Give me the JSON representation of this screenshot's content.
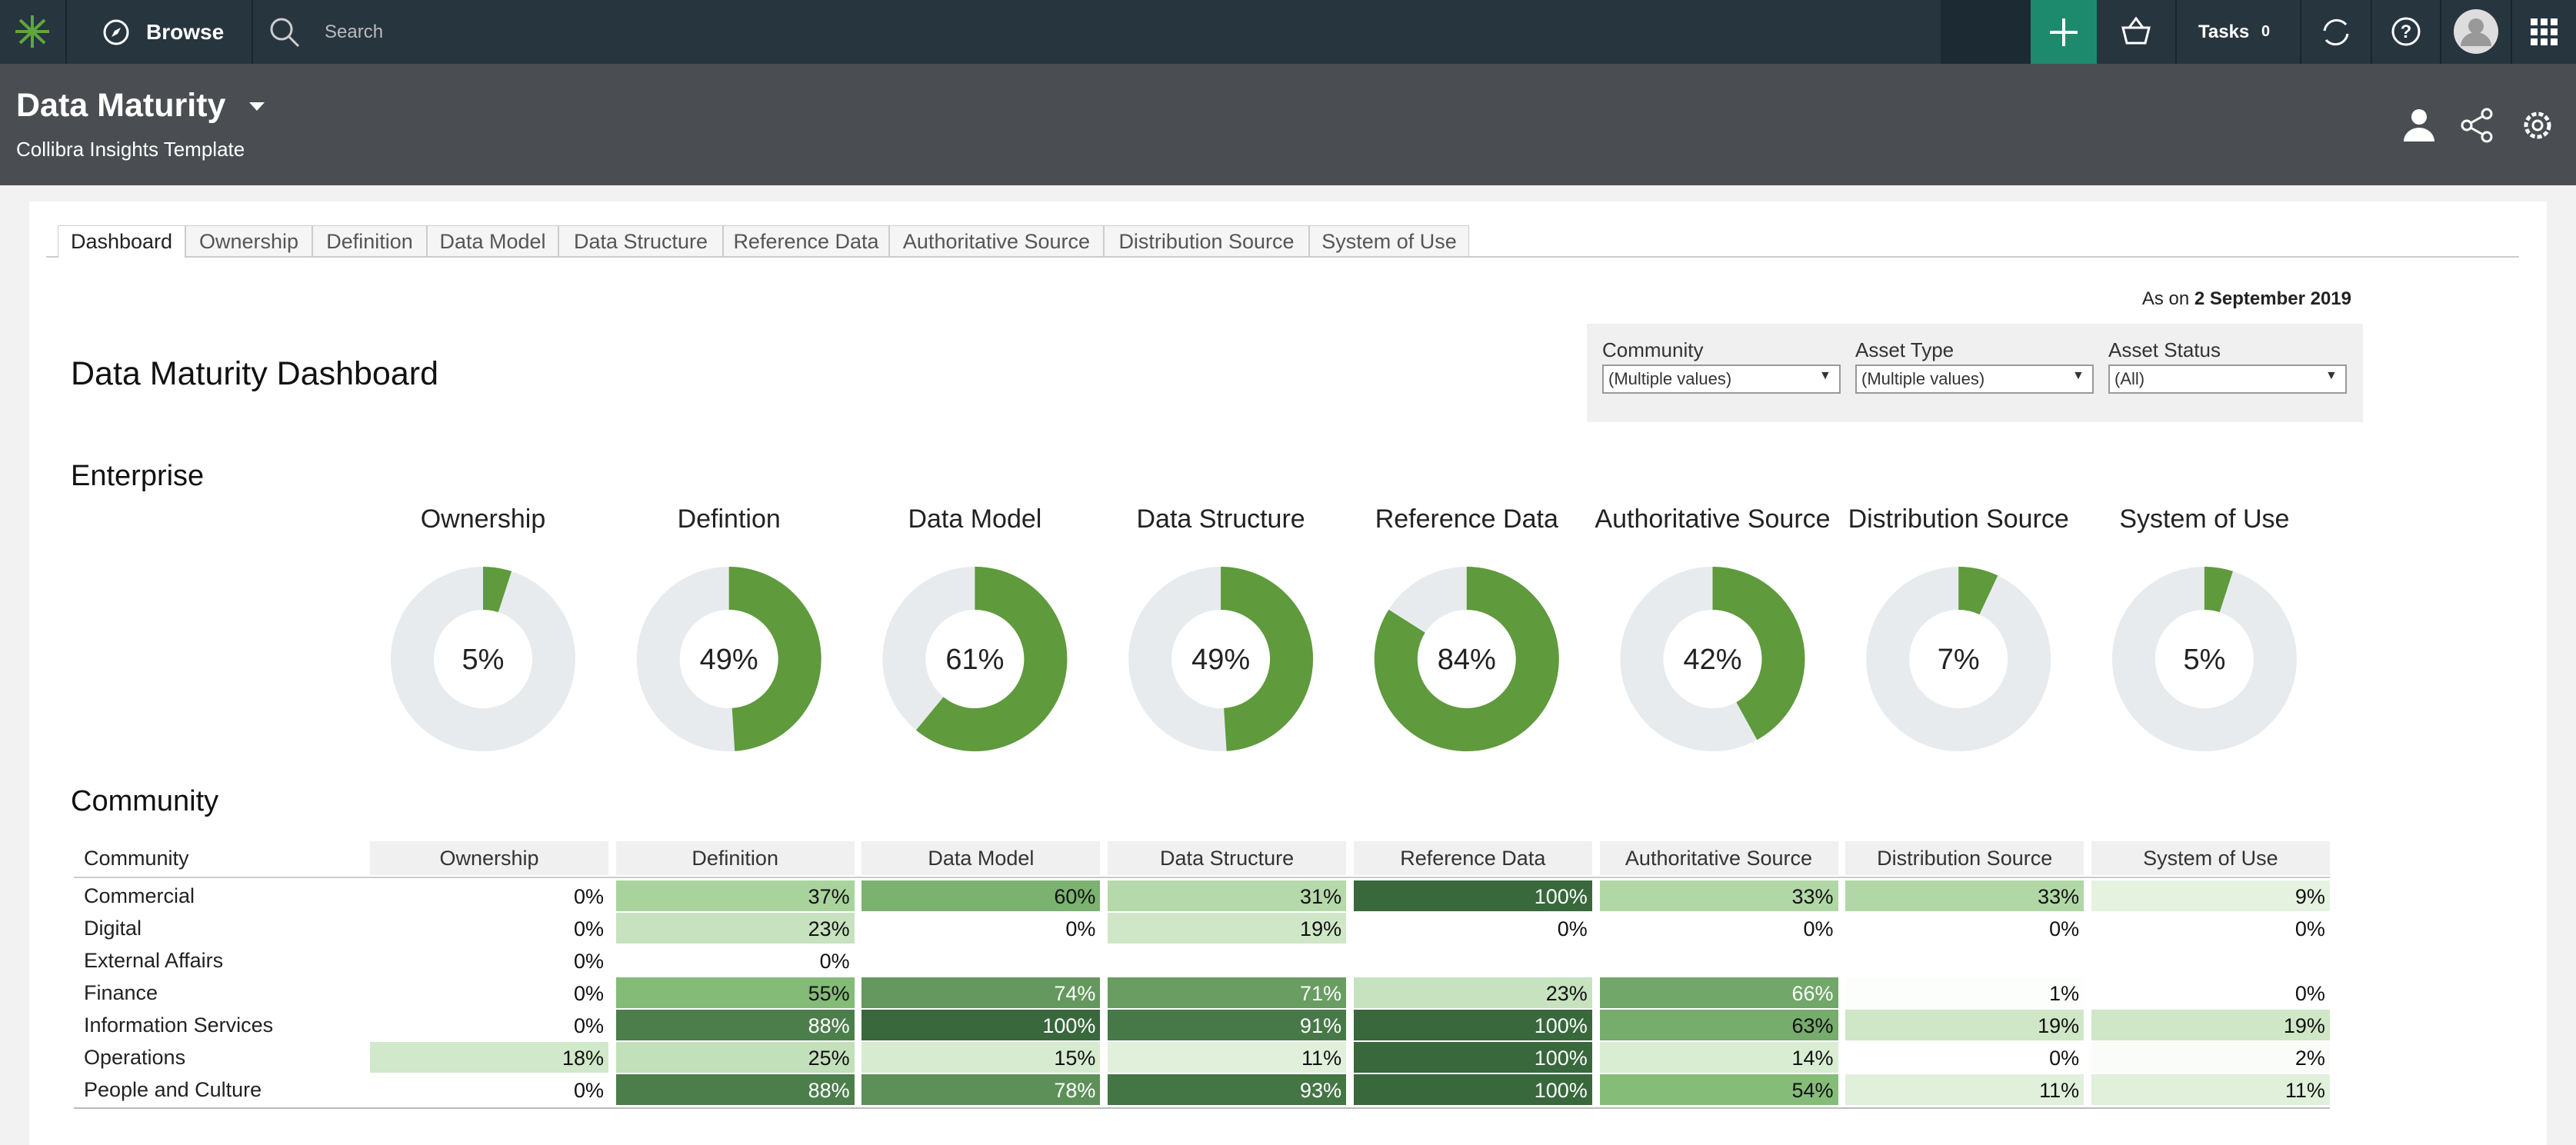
{
  "nav": {
    "browse": "Browse",
    "search": "Search",
    "tasks": "Tasks",
    "task_count": "0"
  },
  "header": {
    "title": "Data Maturity",
    "subtitle": "Collibra Insights Template"
  },
  "tabs": [
    "Dashboard",
    "Ownership",
    "Definition",
    "Data Model",
    "Data Structure",
    "Reference Data",
    "Authoritative Source",
    "Distribution Source",
    "System of Use"
  ],
  "as_on": {
    "prefix": "As on",
    "date": "2 September 2019"
  },
  "filters": [
    {
      "label": "Community",
      "value": "(Multiple values)"
    },
    {
      "label": "Asset Type",
      "value": "(Multiple values)"
    },
    {
      "label": "Asset Status",
      "value": "(All)"
    }
  ],
  "dashboard_title": "Data Maturity Dashboard",
  "enterprise": {
    "title": "Enterprise",
    "donuts": [
      {
        "label": "Ownership",
        "value": 5,
        "value_label": "5%"
      },
      {
        "label": "Defintion",
        "value": 49,
        "value_label": "49%"
      },
      {
        "label": "Data Model",
        "value": 61,
        "value_label": "61%"
      },
      {
        "label": "Data Structure",
        "value": 49,
        "value_label": "49%"
      },
      {
        "label": "Reference Data",
        "value": 84,
        "value_label": "84%"
      },
      {
        "label": "Authoritative Source",
        "value": 42,
        "value_label": "42%"
      },
      {
        "label": "Distribution Source",
        "value": 7,
        "value_label": "7%"
      },
      {
        "label": "System of Use",
        "value": 5,
        "value_label": "5%"
      }
    ]
  },
  "community": {
    "title": "Community",
    "corner": "Community",
    "columns": [
      "Ownership",
      "Definition",
      "Data Model",
      "Data Structure",
      "Reference Data",
      "Authoritative Source",
      "Distribution Source",
      "System of Use"
    ],
    "rows": [
      {
        "name": "Commercial",
        "cells": [
          {
            "value": 0,
            "label": "0%"
          },
          {
            "value": 37,
            "label": "37%"
          },
          {
            "value": 60,
            "label": "60%"
          },
          {
            "value": 31,
            "label": "31%"
          },
          {
            "value": 100,
            "label": "100%"
          },
          {
            "value": 33,
            "label": "33%"
          },
          {
            "value": 33,
            "label": "33%"
          },
          {
            "value": 9,
            "label": "9%"
          }
        ]
      },
      {
        "name": "Digital",
        "cells": [
          {
            "value": 0,
            "label": "0%"
          },
          {
            "value": 23,
            "label": "23%"
          },
          {
            "value": 0,
            "label": "0%"
          },
          {
            "value": 19,
            "label": "19%"
          },
          {
            "value": 0,
            "label": "0%"
          },
          {
            "value": 0,
            "label": "0%"
          },
          {
            "value": 0,
            "label": "0%"
          },
          {
            "value": 0,
            "label": "0%"
          }
        ]
      },
      {
        "name": "External Affairs",
        "cells": [
          {
            "value": 0,
            "label": "0%"
          },
          {
            "value": 0,
            "label": "0%"
          },
          null,
          null,
          null,
          null,
          null,
          null
        ]
      },
      {
        "name": "Finance",
        "cells": [
          {
            "value": 0,
            "label": "0%"
          },
          {
            "value": 55,
            "label": "55%"
          },
          {
            "value": 74,
            "label": "74%"
          },
          {
            "value": 71,
            "label": "71%"
          },
          {
            "value": 23,
            "label": "23%"
          },
          {
            "value": 66,
            "label": "66%"
          },
          {
            "value": 1,
            "label": "1%"
          },
          {
            "value": 0,
            "label": "0%"
          }
        ]
      },
      {
        "name": "Information Services",
        "cells": [
          {
            "value": 0,
            "label": "0%"
          },
          {
            "value": 88,
            "label": "88%"
          },
          {
            "value": 100,
            "label": "100%"
          },
          {
            "value": 91,
            "label": "91%"
          },
          {
            "value": 100,
            "label": "100%"
          },
          {
            "value": 63,
            "label": "63%"
          },
          {
            "value": 19,
            "label": "19%"
          },
          {
            "value": 19,
            "label": "19%"
          }
        ]
      },
      {
        "name": "Operations",
        "cells": [
          {
            "value": 18,
            "label": "18%"
          },
          {
            "value": 25,
            "label": "25%"
          },
          {
            "value": 15,
            "label": "15%"
          },
          {
            "value": 11,
            "label": "11%"
          },
          {
            "value": 100,
            "label": "100%"
          },
          {
            "value": 14,
            "label": "14%"
          },
          {
            "value": 0,
            "label": "0%"
          },
          {
            "value": 2,
            "label": "2%"
          }
        ]
      },
      {
        "name": "People and Culture",
        "cells": [
          {
            "value": 0,
            "label": "0%"
          },
          {
            "value": 88,
            "label": "88%"
          },
          {
            "value": 78,
            "label": "78%"
          },
          {
            "value": 93,
            "label": "93%"
          },
          {
            "value": 100,
            "label": "100%"
          },
          {
            "value": 54,
            "label": "54%"
          },
          {
            "value": 11,
            "label": "11%"
          },
          {
            "value": 11,
            "label": "11%"
          }
        ]
      }
    ]
  }
}
